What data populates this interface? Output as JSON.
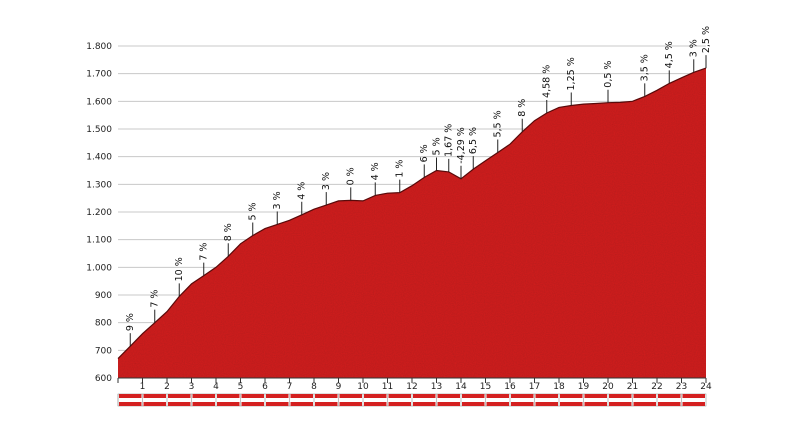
{
  "chart_data": {
    "type": "area",
    "xlim": [
      0,
      24
    ],
    "ylim": [
      600,
      1800
    ],
    "y_ticks": [
      600,
      700,
      800,
      900,
      1000,
      1100,
      1200,
      1300,
      1400,
      1500,
      1600,
      1700,
      1800
    ],
    "y_tick_labels": [
      "600",
      "700",
      "800",
      "900",
      "1.000",
      "1.100",
      "1.200",
      "1.300",
      "1.400",
      "1.500",
      "1.600",
      "1.700",
      "1.800"
    ],
    "x_ticks": [
      0,
      1,
      2,
      3,
      4,
      5,
      6,
      7,
      8,
      9,
      10,
      11,
      12,
      13,
      14,
      15,
      16,
      17,
      18,
      19,
      20,
      21,
      22,
      23,
      24
    ],
    "x_tick_labels": [
      "1",
      "2",
      "3",
      "4",
      "5",
      "6",
      "7",
      "8",
      "9",
      "10",
      "11",
      "12",
      "13",
      "14",
      "15",
      "16",
      "17",
      "18",
      "19",
      "20",
      "21",
      "22",
      "23",
      "24"
    ],
    "x_tick_label_positions": [
      1,
      2,
      3,
      4,
      5,
      6,
      7,
      8,
      9,
      10,
      11,
      12,
      13,
      14,
      15,
      16,
      17,
      18,
      19,
      20,
      21,
      22,
      23,
      24
    ],
    "fill_color": "#d42020",
    "grid": true,
    "profile": {
      "x": [
        0,
        0.5,
        1,
        1.5,
        2,
        2.5,
        3,
        3.5,
        4,
        4.5,
        5,
        5.5,
        6,
        6.5,
        7,
        7.5,
        8,
        8.5,
        9,
        9.5,
        10,
        10.5,
        11,
        11.5,
        12,
        12.5,
        13,
        13.5,
        14,
        14.5,
        15,
        15.5,
        16,
        16.5,
        17,
        17.5,
        18,
        18.5,
        19,
        19.5,
        20,
        20.5,
        21,
        21.5,
        22,
        22.5,
        23,
        23.5,
        24
      ],
      "y": [
        670,
        715,
        760,
        800,
        840,
        895,
        940,
        970,
        1000,
        1040,
        1085,
        1115,
        1140,
        1155,
        1170,
        1190,
        1210,
        1225,
        1240,
        1242,
        1240,
        1260,
        1268,
        1270,
        1295,
        1325,
        1350,
        1345,
        1320,
        1355,
        1385,
        1415,
        1445,
        1490,
        1530,
        1558,
        1578,
        1585,
        1590,
        1592,
        1595,
        1596,
        1600,
        1618,
        1640,
        1665,
        1685,
        1705,
        1720
      ]
    },
    "annotations": [
      {
        "x": 0.5,
        "y": 715,
        "label": "9 %"
      },
      {
        "x": 1.5,
        "y": 800,
        "label": "7 %"
      },
      {
        "x": 2.5,
        "y": 895,
        "label": "10 %",
        "color": "#d42020"
      },
      {
        "x": 3.5,
        "y": 970,
        "label": "7 %"
      },
      {
        "x": 4.5,
        "y": 1040,
        "label": "8 %"
      },
      {
        "x": 5.5,
        "y": 1115,
        "label": "5 %"
      },
      {
        "x": 6.5,
        "y": 1155,
        "label": "3 %"
      },
      {
        "x": 7.5,
        "y": 1190,
        "label": "4 %"
      },
      {
        "x": 8.5,
        "y": 1225,
        "label": "3 %"
      },
      {
        "x": 9.5,
        "y": 1242,
        "label": "0 %"
      },
      {
        "x": 10.5,
        "y": 1260,
        "label": "4 %"
      },
      {
        "x": 11.5,
        "y": 1270,
        "label": "1 %"
      },
      {
        "x": 12.5,
        "y": 1325,
        "label": "6 %"
      },
      {
        "x": 13.0,
        "y": 1350,
        "label": "5 %"
      },
      {
        "x": 13.5,
        "y": 1345,
        "label": "1,67 %"
      },
      {
        "x": 14.0,
        "y": 1320,
        "label": "-4,29 %"
      },
      {
        "x": 14.5,
        "y": 1355,
        "label": "6,5 %"
      },
      {
        "x": 15.5,
        "y": 1415,
        "label": "5,5 %"
      },
      {
        "x": 16.5,
        "y": 1490,
        "label": "8 %"
      },
      {
        "x": 17.5,
        "y": 1558,
        "label": "4,58 %"
      },
      {
        "x": 18.5,
        "y": 1585,
        "label": "1,25 %"
      },
      {
        "x": 20.0,
        "y": 1595,
        "label": "0,5 %"
      },
      {
        "x": 21.5,
        "y": 1618,
        "label": "3,5 %"
      },
      {
        "x": 22.5,
        "y": 1665,
        "label": "4,5 %"
      },
      {
        "x": 23.5,
        "y": 1705,
        "label": "3 %"
      },
      {
        "x": 24.0,
        "y": 1720,
        "label": "2,5 %"
      }
    ]
  }
}
